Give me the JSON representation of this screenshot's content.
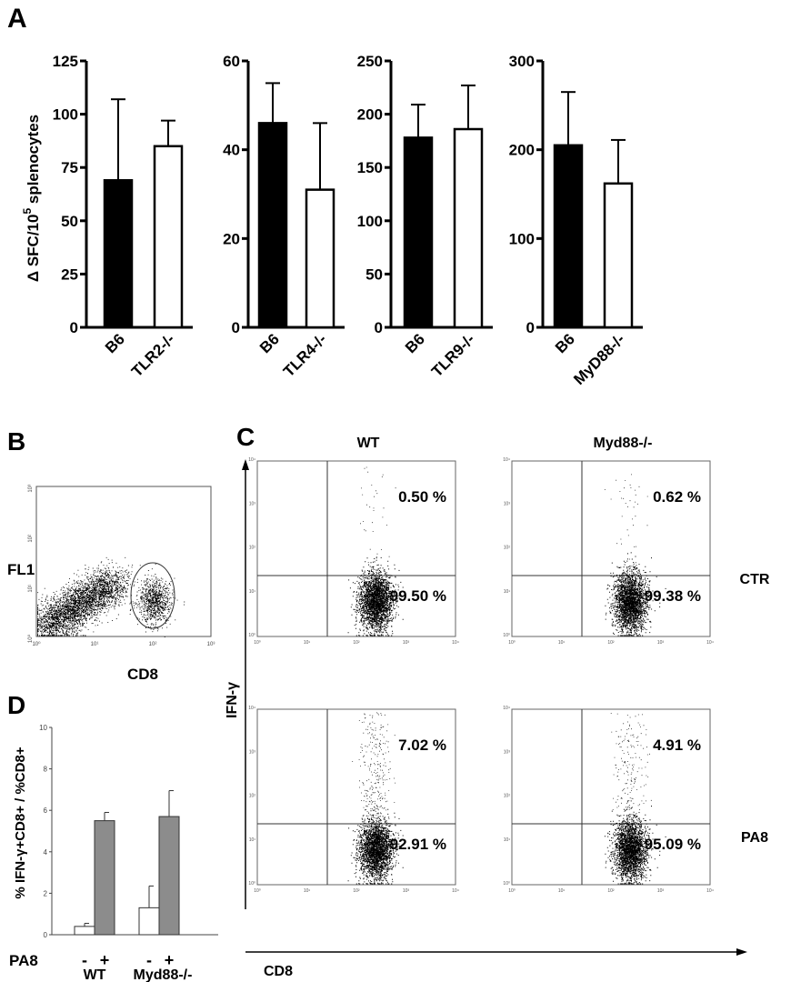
{
  "panel_letters": {
    "a": "A",
    "b": "B",
    "c": "C",
    "d": "D"
  },
  "chart_data": [
    {
      "id": "A1",
      "type": "bar",
      "panel": "A",
      "ylabel": "Δ SFC/10⁵ splenocytes",
      "ylabel_main": "Δ SFC/10",
      "ylabel_sup": "5",
      "ylabel_tail": " splenocytes",
      "categories": [
        "B6",
        "TLR2-/-"
      ],
      "values": [
        69,
        85
      ],
      "errors": [
        38,
        12
      ],
      "colors": [
        "#000000",
        "#ffffff"
      ],
      "ylim": [
        0,
        125
      ],
      "yticks": [
        0,
        25,
        50,
        75,
        100,
        125
      ]
    },
    {
      "id": "A2",
      "type": "bar",
      "panel": "A",
      "categories": [
        "B6",
        "TLR4-/-"
      ],
      "values": [
        46,
        31
      ],
      "errors": [
        9,
        15
      ],
      "colors": [
        "#000000",
        "#ffffff"
      ],
      "ylim": [
        0,
        60
      ],
      "yticks": [
        0,
        20,
        40,
        60
      ]
    },
    {
      "id": "A3",
      "type": "bar",
      "panel": "A",
      "categories": [
        "B6",
        "TLR9-/-"
      ],
      "values": [
        178,
        186
      ],
      "errors": [
        31,
        41
      ],
      "colors": [
        "#000000",
        "#ffffff"
      ],
      "ylim": [
        0,
        250
      ],
      "yticks": [
        0,
        50,
        100,
        150,
        200,
        250
      ]
    },
    {
      "id": "A4",
      "type": "bar",
      "panel": "A",
      "categories": [
        "B6",
        "MyD88-/-"
      ],
      "values": [
        205,
        162
      ],
      "errors": [
        60,
        49
      ],
      "colors": [
        "#000000",
        "#ffffff"
      ],
      "ylim": [
        0,
        300
      ],
      "yticks": [
        0,
        100,
        200,
        300
      ]
    },
    {
      "id": "B",
      "type": "scatter",
      "panel": "B",
      "xlabel": "CD8",
      "ylabel": "FL1",
      "xscale": "log",
      "yscale": "log",
      "xticks": [
        "10⁰",
        "10¹",
        "10²",
        "10³"
      ],
      "yticks": [
        "10⁰",
        "10¹",
        "10²",
        "10³"
      ],
      "gate": "CD8+ population (ellipse)"
    },
    {
      "id": "C",
      "type": "scatter",
      "panel": "C",
      "xlabel": "CD8",
      "ylabel": "IFN-γ",
      "xscale": "log",
      "yscale": "log",
      "columns": [
        "WT",
        "Myd88-/-"
      ],
      "rows": [
        "CTR",
        "PA8"
      ],
      "ticks": [
        "10⁰",
        "10¹",
        "10²",
        "10³",
        "10⁴"
      ],
      "quadrants": [
        {
          "column": "WT",
          "row": "CTR",
          "upper": "0.50 %",
          "lower": "99.50 %"
        },
        {
          "column": "Myd88-/-",
          "row": "CTR",
          "upper": "0.62 %",
          "lower": "99.38 %"
        },
        {
          "column": "WT",
          "row": "PA8",
          "upper": "7.02 %",
          "lower": "92.91 %"
        },
        {
          "column": "Myd88-/-",
          "row": "PA8",
          "upper": "4.91 %",
          "lower": "95.09 %"
        }
      ]
    },
    {
      "id": "D",
      "type": "bar",
      "panel": "D",
      "ylabel": "% IFN-γ+CD8+ / %CD8+",
      "row_label": "PA8",
      "groups": [
        "WT",
        "Myd88-/-"
      ],
      "conditions": [
        "-",
        "+"
      ],
      "series": [
        {
          "name": "-",
          "values": [
            0.4,
            1.3
          ],
          "errors": [
            0.15,
            1.05
          ],
          "color": "#ffffff"
        },
        {
          "name": "+",
          "values": [
            5.5,
            5.7
          ],
          "errors": [
            0.4,
            1.25
          ],
          "color": "#8c8c8c"
        }
      ],
      "ylim": [
        0,
        10
      ],
      "yticks": [
        0,
        2,
        4,
        6,
        8,
        10
      ]
    }
  ]
}
